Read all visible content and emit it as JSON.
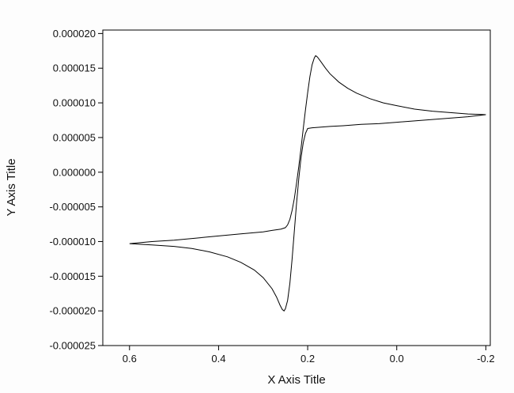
{
  "chart_data": {
    "type": "line",
    "title": "",
    "xlabel": "X Axis Title",
    "ylabel": "Y Axis Title",
    "grid": false,
    "legend": "none",
    "x_axis_reversed": true,
    "x_range": [
      0.66,
      -0.21
    ],
    "y_range": [
      -2.5e-05,
      2.05e-05
    ],
    "x_ticks": [
      0.6,
      0.4,
      0.2,
      0.0,
      -0.2
    ],
    "x_tick_labels": [
      "0.6",
      "0.4",
      "0.2",
      "0.0",
      "-0.2"
    ],
    "y_ticks": [
      2e-05,
      1.5e-05,
      1e-05,
      5e-06,
      0,
      -5e-06,
      -1e-05,
      -1.5e-05,
      -2e-05,
      -2.5e-05
    ],
    "y_tick_labels": [
      "0.000020",
      "0.000015",
      "0.000010",
      "0.000005",
      "0.000000",
      "-0.000005",
      "-0.000010",
      "-0.000015",
      "-0.000020",
      "-0.000025"
    ],
    "line_color": "#000000",
    "series": [
      {
        "name": "cyclic-voltammogram-loop",
        "points": [
          [
            0.6,
            -1.03e-05
          ],
          [
            0.55,
            -1e-05
          ],
          [
            0.5,
            -9.8e-06
          ],
          [
            0.45,
            -9.5e-06
          ],
          [
            0.4,
            -9.2e-06
          ],
          [
            0.35,
            -8.9e-06
          ],
          [
            0.3,
            -8.6e-06
          ],
          [
            0.28,
            -8.4e-06
          ],
          [
            0.26,
            -8.2e-06
          ],
          [
            0.25,
            -8e-06
          ],
          [
            0.245,
            -7.6e-06
          ],
          [
            0.24,
            -6.8e-06
          ],
          [
            0.235,
            -5.5e-06
          ],
          [
            0.23,
            -3.8e-06
          ],
          [
            0.225,
            -1.6e-06
          ],
          [
            0.22,
            8e-07
          ],
          [
            0.215,
            3.4e-06
          ],
          [
            0.21,
            6.2e-06
          ],
          [
            0.205,
            9e-06
          ],
          [
            0.2,
            1.15e-05
          ],
          [
            0.195,
            1.38e-05
          ],
          [
            0.19,
            1.55e-05
          ],
          [
            0.185,
            1.65e-05
          ],
          [
            0.182,
            1.68e-05
          ],
          [
            0.178,
            1.66e-05
          ],
          [
            0.17,
            1.59e-05
          ],
          [
            0.16,
            1.5e-05
          ],
          [
            0.15,
            1.42e-05
          ],
          [
            0.13,
            1.3e-05
          ],
          [
            0.11,
            1.21e-05
          ],
          [
            0.09,
            1.14e-05
          ],
          [
            0.06,
            1.06e-05
          ],
          [
            0.03,
            1e-05
          ],
          [
            0.0,
            9.6e-06
          ],
          [
            -0.04,
            9.1e-06
          ],
          [
            -0.08,
            8.8e-06
          ],
          [
            -0.12,
            8.6e-06
          ],
          [
            -0.16,
            8.4e-06
          ],
          [
            -0.2,
            8.3e-06
          ],
          [
            -0.16,
            8e-06
          ],
          [
            -0.12,
            7.8e-06
          ],
          [
            -0.08,
            7.6e-06
          ],
          [
            -0.04,
            7.4e-06
          ],
          [
            0.0,
            7.2e-06
          ],
          [
            0.04,
            7e-06
          ],
          [
            0.08,
            6.9e-06
          ],
          [
            0.12,
            6.7e-06
          ],
          [
            0.15,
            6.6e-06
          ],
          [
            0.17,
            6.5e-06
          ],
          [
            0.19,
            6.4e-06
          ],
          [
            0.2,
            6.3e-06
          ],
          [
            0.205,
            5.6e-06
          ],
          [
            0.21,
            4.2e-06
          ],
          [
            0.215,
            2e-06
          ],
          [
            0.22,
            -1e-06
          ],
          [
            0.225,
            -4.5e-06
          ],
          [
            0.23,
            -8.5e-06
          ],
          [
            0.235,
            -1.25e-05
          ],
          [
            0.24,
            -1.6e-05
          ],
          [
            0.245,
            -1.85e-05
          ],
          [
            0.25,
            -1.97e-05
          ],
          [
            0.253,
            -2e-05
          ],
          [
            0.257,
            -1.98e-05
          ],
          [
            0.262,
            -1.92e-05
          ],
          [
            0.27,
            -1.8e-05
          ],
          [
            0.28,
            -1.68e-05
          ],
          [
            0.3,
            -1.52e-05
          ],
          [
            0.32,
            -1.41e-05
          ],
          [
            0.35,
            -1.3e-05
          ],
          [
            0.38,
            -1.22e-05
          ],
          [
            0.42,
            -1.15e-05
          ],
          [
            0.46,
            -1.1e-05
          ],
          [
            0.5,
            -1.07e-05
          ],
          [
            0.55,
            -1.05e-05
          ],
          [
            0.6,
            -1.03e-05
          ]
        ]
      }
    ]
  }
}
